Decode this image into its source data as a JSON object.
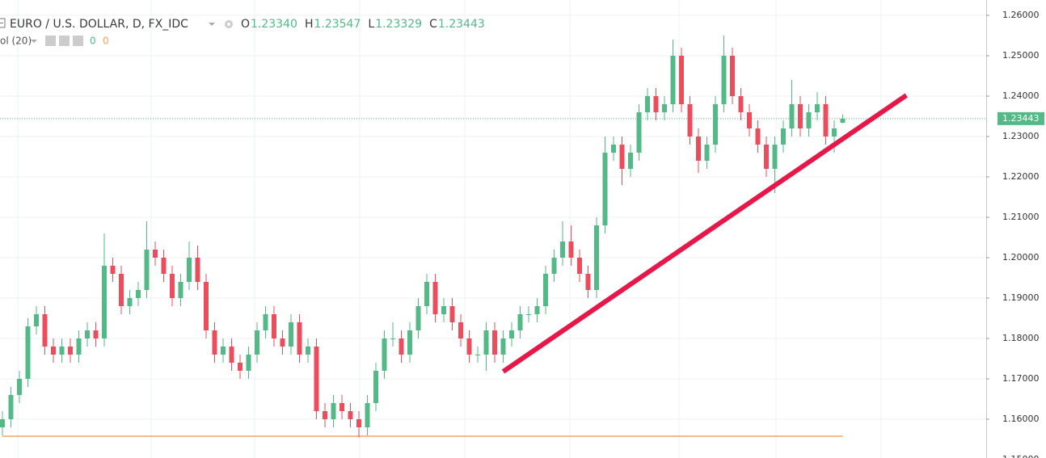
{
  "chart_data": {
    "type": "candlestick",
    "header": {
      "symbol": "EURO / U.S. DOLLAR, D, FX_IDC",
      "ohlc": [
        {
          "label": "O",
          "value": "1.23340"
        },
        {
          "label": "H",
          "value": "1.23547"
        },
        {
          "label": "L",
          "value": "1.23329"
        },
        {
          "label": "C",
          "value": "1.23443"
        }
      ],
      "indicator": "ol (20)",
      "indicator_values": [
        0,
        0
      ]
    },
    "ylim": [
      1.1504,
      1.2638
    ],
    "yticks": [
      {
        "value": 1.15,
        "label": "1.15000"
      },
      {
        "value": 1.16,
        "label": "1.16000"
      },
      {
        "value": 1.17,
        "label": "1.17000"
      },
      {
        "value": 1.18,
        "label": "1.18000"
      },
      {
        "value": 1.19,
        "label": "1.19000"
      },
      {
        "value": 1.2,
        "label": "1.20000"
      },
      {
        "value": 1.21,
        "label": "1.21000"
      },
      {
        "value": 1.22,
        "label": "1.22000"
      },
      {
        "value": 1.23,
        "label": "1.23000"
      },
      {
        "value": 1.24,
        "label": "1.24000"
      },
      {
        "value": 1.25,
        "label": "1.25000"
      },
      {
        "value": 1.26,
        "label": "1.26000"
      }
    ],
    "grid": true,
    "up_color": "#53b987",
    "down_color": "#eb4d5c",
    "last_price": {
      "value": 1.23443,
      "label": "1.23443"
    },
    "open": [
      1.158,
      1.16,
      1.166,
      1.17,
      1.183,
      1.186,
      1.178,
      1.176,
      1.178,
      1.176,
      1.18,
      1.182,
      1.18,
      1.198,
      1.196,
      1.188,
      1.19,
      1.192,
      1.202,
      1.2,
      1.196,
      1.19,
      1.194,
      1.2,
      1.194,
      1.182,
      1.176,
      1.178,
      1.174,
      1.172,
      1.176,
      1.182,
      1.186,
      1.18,
      1.178,
      1.184,
      1.176,
      1.178,
      1.162,
      1.16,
      1.164,
      1.162,
      1.16,
      1.158,
      1.164,
      1.172,
      1.18,
      1.18,
      1.176,
      1.182,
      1.188,
      1.194,
      1.186,
      1.188,
      1.184,
      1.18,
      1.176,
      1.176,
      1.182,
      1.176,
      1.18,
      1.182,
      1.186,
      1.186,
      1.188,
      1.196,
      1.2,
      1.204,
      1.2,
      1.196,
      1.192,
      1.208,
      1.226,
      1.228,
      1.222,
      1.226,
      1.236,
      1.24,
      1.236,
      1.238,
      1.25,
      1.238,
      1.23,
      1.224,
      1.228,
      1.238,
      1.25,
      1.24,
      1.236,
      1.232,
      1.228,
      1.222,
      1.228,
      1.232,
      1.238,
      1.232,
      1.236,
      1.238,
      1.23,
      1.2334
    ],
    "high": [
      1.162,
      1.168,
      1.172,
      1.185,
      1.188,
      1.188,
      1.18,
      1.18,
      1.18,
      1.182,
      1.184,
      1.184,
      1.206,
      1.2,
      1.198,
      1.192,
      1.194,
      1.209,
      1.204,
      1.202,
      1.198,
      1.196,
      1.204,
      1.203,
      1.196,
      1.184,
      1.18,
      1.18,
      1.176,
      1.178,
      1.184,
      1.188,
      1.188,
      1.182,
      1.186,
      1.186,
      1.18,
      1.18,
      1.164,
      1.166,
      1.166,
      1.164,
      1.162,
      1.166,
      1.174,
      1.182,
      1.184,
      1.182,
      1.184,
      1.19,
      1.196,
      1.196,
      1.19,
      1.19,
      1.186,
      1.182,
      1.178,
      1.184,
      1.184,
      1.182,
      1.184,
      1.188,
      1.188,
      1.19,
      1.198,
      1.202,
      1.209,
      1.208,
      1.202,
      1.198,
      1.21,
      1.23,
      1.23,
      1.23,
      1.228,
      1.238,
      1.242,
      1.242,
      1.24,
      1.254,
      1.252,
      1.24,
      1.232,
      1.23,
      1.24,
      1.255,
      1.252,
      1.242,
      1.238,
      1.234,
      1.23,
      1.23,
      1.234,
      1.244,
      1.24,
      1.238,
      1.241,
      1.24,
      1.234,
      1.23547
    ],
    "low": [
      1.156,
      1.158,
      1.164,
      1.168,
      1.181,
      1.176,
      1.174,
      1.174,
      1.174,
      1.174,
      1.178,
      1.178,
      1.178,
      1.194,
      1.186,
      1.186,
      1.188,
      1.19,
      1.198,
      1.194,
      1.188,
      1.188,
      1.192,
      1.192,
      1.18,
      1.174,
      1.174,
      1.172,
      1.17,
      1.17,
      1.174,
      1.18,
      1.178,
      1.176,
      1.176,
      1.174,
      1.174,
      1.16,
      1.158,
      1.158,
      1.16,
      1.158,
      1.1555,
      1.156,
      1.162,
      1.17,
      1.178,
      1.174,
      1.174,
      1.18,
      1.186,
      1.184,
      1.184,
      1.182,
      1.178,
      1.174,
      1.174,
      1.172,
      1.174,
      1.174,
      1.178,
      1.18,
      1.184,
      1.184,
      1.186,
      1.194,
      1.198,
      1.198,
      1.194,
      1.19,
      1.19,
      1.206,
      1.224,
      1.218,
      1.22,
      1.224,
      1.234,
      1.234,
      1.234,
      1.236,
      1.236,
      1.228,
      1.221,
      1.222,
      1.226,
      1.236,
      1.238,
      1.234,
      1.23,
      1.226,
      1.22,
      1.216,
      1.226,
      1.23,
      1.23,
      1.23,
      1.234,
      1.228,
      1.226,
      1.23329
    ],
    "close": [
      1.16,
      1.166,
      1.17,
      1.183,
      1.186,
      1.178,
      1.176,
      1.178,
      1.176,
      1.18,
      1.182,
      1.18,
      1.198,
      1.196,
      1.188,
      1.19,
      1.192,
      1.202,
      1.2,
      1.196,
      1.19,
      1.194,
      1.2,
      1.194,
      1.182,
      1.176,
      1.178,
      1.174,
      1.172,
      1.176,
      1.182,
      1.186,
      1.18,
      1.178,
      1.184,
      1.176,
      1.178,
      1.162,
      1.16,
      1.164,
      1.162,
      1.16,
      1.158,
      1.164,
      1.172,
      1.18,
      1.18,
      1.176,
      1.182,
      1.188,
      1.194,
      1.186,
      1.188,
      1.184,
      1.18,
      1.176,
      1.176,
      1.182,
      1.176,
      1.18,
      1.182,
      1.186,
      1.186,
      1.188,
      1.196,
      1.2,
      1.204,
      1.2,
      1.196,
      1.192,
      1.208,
      1.226,
      1.228,
      1.222,
      1.226,
      1.236,
      1.24,
      1.236,
      1.238,
      1.25,
      1.238,
      1.23,
      1.224,
      1.228,
      1.238,
      1.25,
      1.24,
      1.236,
      1.232,
      1.228,
      1.222,
      1.228,
      1.232,
      1.238,
      1.232,
      1.236,
      1.238,
      1.23,
      1.232,
      1.23443
    ],
    "trendline": {
      "x": [
        59,
        106.5
      ],
      "y": [
        1.1718,
        1.2402
      ],
      "color": "#e8174a"
    },
    "support_line": {
      "x": [
        0,
        99
      ],
      "y": [
        1.1558,
        1.1558
      ],
      "color": "#f4a261"
    }
  }
}
